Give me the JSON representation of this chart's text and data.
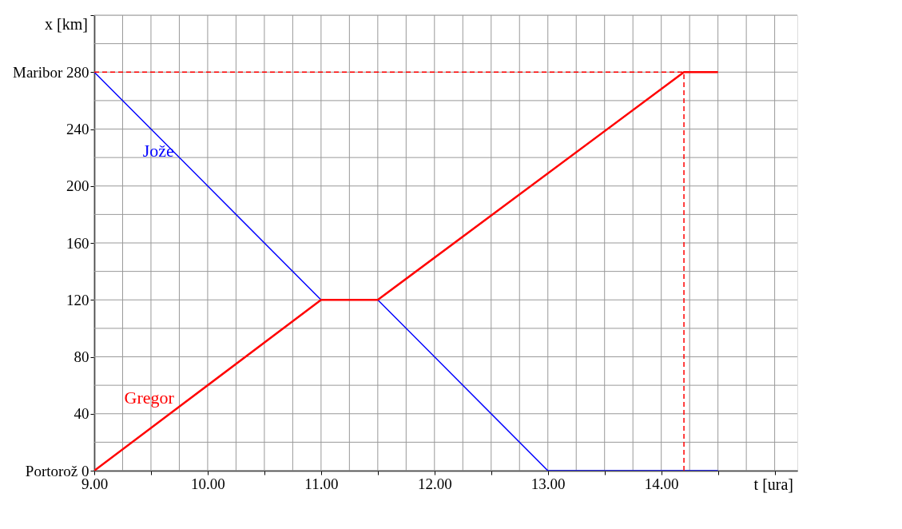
{
  "chart_data": {
    "type": "line",
    "xlabel": "t [ura]",
    "ylabel": "x [km]",
    "xlim": [
      9,
      15.2
    ],
    "ylim": [
      0,
      320
    ],
    "xticks": [
      {
        "value": 9,
        "label": "9.00"
      },
      {
        "value": 9.25,
        "label": null
      },
      {
        "value": 9.5,
        "label": null
      },
      {
        "value": 9.75,
        "label": null
      },
      {
        "value": 10,
        "label": "10.00"
      },
      {
        "value": 10.25,
        "label": null
      },
      {
        "value": 10.5,
        "label": null
      },
      {
        "value": 10.75,
        "label": null
      },
      {
        "value": 11,
        "label": "11.00"
      },
      {
        "value": 11.25,
        "label": null
      },
      {
        "value": 11.5,
        "label": null
      },
      {
        "value": 11.75,
        "label": null
      },
      {
        "value": 12,
        "label": "12.00"
      },
      {
        "value": 12.25,
        "label": null
      },
      {
        "value": 12.5,
        "label": null
      },
      {
        "value": 12.75,
        "label": null
      },
      {
        "value": 13,
        "label": "13.00"
      },
      {
        "value": 13.25,
        "label": null
      },
      {
        "value": 13.5,
        "label": null
      },
      {
        "value": 13.75,
        "label": null
      },
      {
        "value": 14,
        "label": "14.00"
      },
      {
        "value": 14.25,
        "label": null
      },
      {
        "value": 14.5,
        "label": null
      },
      {
        "value": 14.75,
        "label": null
      },
      {
        "value": 15,
        "label": null
      }
    ],
    "yticks": [
      {
        "value": 0,
        "label": "Portorož  0"
      },
      {
        "value": 20,
        "label": null
      },
      40,
      {
        "value": 60,
        "label": null
      },
      80,
      {
        "value": 100,
        "label": null
      },
      120,
      {
        "value": 140,
        "label": null
      },
      160,
      {
        "value": 180,
        "label": null
      },
      200,
      {
        "value": 220,
        "label": null
      },
      240,
      {
        "value": 260,
        "label": null
      },
      {
        "value": 280,
        "label": "Maribor  280"
      },
      {
        "value": 300,
        "label": null
      },
      {
        "value": 320,
        "label": null
      }
    ],
    "grid": true,
    "marker": "none",
    "series": [
      {
        "color": "#0000ff",
        "x": [
          9,
          11,
          11.5,
          13,
          14.5
        ],
        "values": [
          280,
          120,
          120,
          0,
          0
        ],
        "line_style": "solid"
      },
      {
        "color": "#ff0000",
        "x": [
          9,
          11,
          11.5,
          14.2,
          14.5
        ],
        "values": [
          0,
          120,
          120,
          280,
          280
        ],
        "line_style": "solid"
      },
      {
        "color": "#ff0000",
        "x": [
          9,
          14.2
        ],
        "values": [
          280,
          280
        ],
        "line_style": "dashed"
      },
      {
        "color": "#ff0000",
        "x": [
          14.2,
          14.2
        ],
        "values": [
          0,
          280
        ],
        "line_style": "dashed"
      }
    ],
    "annotations": [
      "Jože",
      "Gregor"
    ]
  }
}
